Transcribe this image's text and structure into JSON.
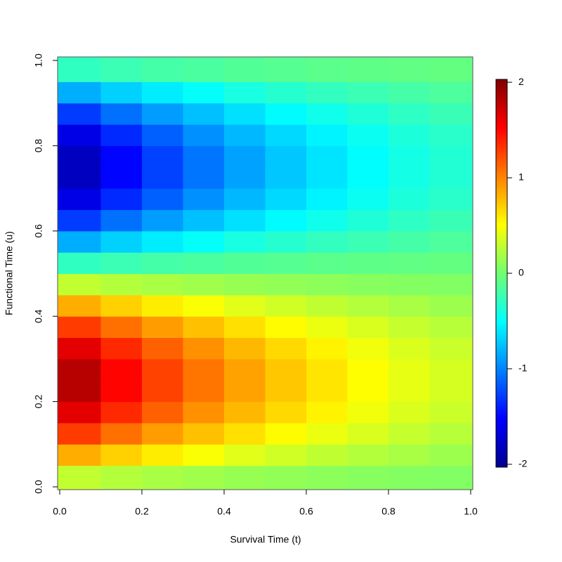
{
  "chart_data": {
    "type": "heatmap",
    "xlabel": "Survival Time (t)",
    "ylabel": "Functional Time (u)",
    "x": [
      0.05,
      0.15,
      0.25,
      0.35,
      0.45,
      0.55,
      0.65,
      0.75,
      0.85,
      0.95
    ],
    "y": [
      0.025,
      0.075,
      0.125,
      0.175,
      0.225,
      0.275,
      0.325,
      0.375,
      0.425,
      0.475,
      0.525,
      0.575,
      0.625,
      0.675,
      0.725,
      0.775,
      0.825,
      0.875,
      0.925,
      0.975
    ],
    "z": [
      [
        0.29,
        0.24,
        0.2,
        0.17,
        0.14,
        0.12,
        0.1,
        0.08,
        0.07,
        0.06
      ],
      [
        0.83,
        0.69,
        0.58,
        0.49,
        0.4,
        0.34,
        0.28,
        0.24,
        0.2,
        0.16
      ],
      [
        1.29,
        1.08,
        0.9,
        0.76,
        0.63,
        0.52,
        0.44,
        0.37,
        0.3,
        0.25
      ],
      [
        1.63,
        1.36,
        1.14,
        0.95,
        0.79,
        0.66,
        0.55,
        0.46,
        0.38,
        0.32
      ],
      [
        1.81,
        1.51,
        1.26,
        1.06,
        0.88,
        0.73,
        0.61,
        0.51,
        0.42,
        0.36
      ],
      [
        1.81,
        1.51,
        1.26,
        1.06,
        0.88,
        0.73,
        0.61,
        0.51,
        0.42,
        0.36
      ],
      [
        1.63,
        1.36,
        1.14,
        0.95,
        0.79,
        0.66,
        0.55,
        0.46,
        0.38,
        0.32
      ],
      [
        1.29,
        1.08,
        0.9,
        0.76,
        0.63,
        0.52,
        0.44,
        0.37,
        0.3,
        0.25
      ],
      [
        0.83,
        0.69,
        0.58,
        0.49,
        0.4,
        0.34,
        0.28,
        0.24,
        0.2,
        0.16
      ],
      [
        0.29,
        0.24,
        0.2,
        0.17,
        0.14,
        0.12,
        0.1,
        0.08,
        0.07,
        0.06
      ],
      [
        -0.29,
        -0.24,
        -0.2,
        -0.17,
        -0.14,
        -0.12,
        -0.1,
        -0.08,
        -0.07,
        -0.06
      ],
      [
        -0.83,
        -0.69,
        -0.58,
        -0.49,
        -0.4,
        -0.34,
        -0.28,
        -0.24,
        -0.2,
        -0.16
      ],
      [
        -1.29,
        -1.08,
        -0.9,
        -0.76,
        -0.63,
        -0.52,
        -0.44,
        -0.37,
        -0.3,
        -0.25
      ],
      [
        -1.63,
        -1.36,
        -1.14,
        -0.95,
        -0.79,
        -0.66,
        -0.55,
        -0.46,
        -0.38,
        -0.32
      ],
      [
        -1.81,
        -1.51,
        -1.26,
        -1.06,
        -0.88,
        -0.73,
        -0.61,
        -0.51,
        -0.42,
        -0.36
      ],
      [
        -1.81,
        -1.51,
        -1.26,
        -1.06,
        -0.88,
        -0.73,
        -0.61,
        -0.51,
        -0.42,
        -0.36
      ],
      [
        -1.63,
        -1.36,
        -1.14,
        -0.95,
        -0.79,
        -0.66,
        -0.55,
        -0.46,
        -0.38,
        -0.32
      ],
      [
        -1.29,
        -1.08,
        -0.9,
        -0.76,
        -0.63,
        -0.52,
        -0.44,
        -0.37,
        -0.3,
        -0.25
      ],
      [
        -0.83,
        -0.69,
        -0.58,
        -0.49,
        -0.4,
        -0.34,
        -0.28,
        -0.24,
        -0.2,
        -0.16
      ],
      [
        -0.29,
        -0.24,
        -0.2,
        -0.17,
        -0.14,
        -0.12,
        -0.1,
        -0.08,
        -0.07,
        -0.06
      ]
    ],
    "xlim": [
      0,
      1
    ],
    "ylim": [
      0,
      1
    ],
    "xticks": [
      {
        "value": 0,
        "label": "0.0"
      },
      0.2,
      0.4,
      0.6,
      0.8,
      {
        "value": 1,
        "label": "1.0"
      }
    ],
    "yticks": [
      {
        "value": 0,
        "label": "0.0"
      },
      0.2,
      0.4,
      0.6,
      0.8,
      {
        "value": 1,
        "label": "1.0"
      }
    ],
    "zlim": [
      -2.03,
      2.03
    ],
    "zticks": [
      -2,
      -1,
      0,
      1,
      2
    ],
    "colors": [
      "#00008F",
      "#0000FF",
      "#0080FF",
      "#00FFFF",
      "#70FF70",
      "#FFFF00",
      "#FF8000",
      "#FF0000",
      "#800000"
    ]
  }
}
